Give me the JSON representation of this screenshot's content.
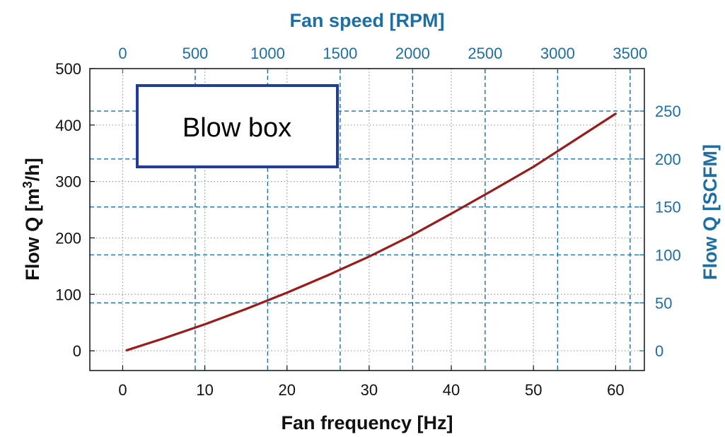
{
  "colors": {
    "accent": "#1d6fa3",
    "curve": "#9b1b1b",
    "axis": "#111111",
    "box_border": "#1f3d99",
    "grid_primary": "#9a9a9a"
  },
  "chart_data": {
    "type": "line",
    "x_bottom": {
      "label": "Fan frequency [Hz]",
      "range": [
        -4,
        63.5
      ],
      "ticks": [
        0,
        10,
        20,
        30,
        40,
        50,
        60
      ]
    },
    "x_top": {
      "label": "Fan speed [RPM]",
      "ticks": [
        0,
        500,
        1000,
        1500,
        2000,
        2500,
        3000,
        3500
      ],
      "tick_labels": [
        "0",
        "500",
        "1000",
        "1500",
        "2000",
        "2500",
        "3000",
        "3500"
      ],
      "hz_per_unit": 0.017647
    },
    "y_left": {
      "label_prefix": "Flow Q [m",
      "label_sup": "3",
      "label_suffix": "/h]",
      "range": [
        -35,
        500
      ],
      "ticks": [
        0,
        100,
        200,
        300,
        400,
        500
      ]
    },
    "y_right": {
      "label": "Flow Q [SCFM]",
      "ticks": [
        0,
        50,
        100,
        150,
        200,
        250
      ],
      "tick_labels": [
        "0",
        "50",
        "100",
        "150",
        "200",
        "250"
      ],
      "m3h_per_unit": 1.699
    },
    "grid": true,
    "series": [
      {
        "x": [
          0.5,
          5,
          10,
          15,
          20,
          25,
          30,
          35,
          40,
          45,
          50,
          55,
          60
        ],
        "y": [
          1,
          22,
          47,
          74,
          103,
          134,
          167,
          203,
          243,
          284,
          326,
          373,
          420
        ]
      }
    ],
    "annotation": "Blow box"
  }
}
